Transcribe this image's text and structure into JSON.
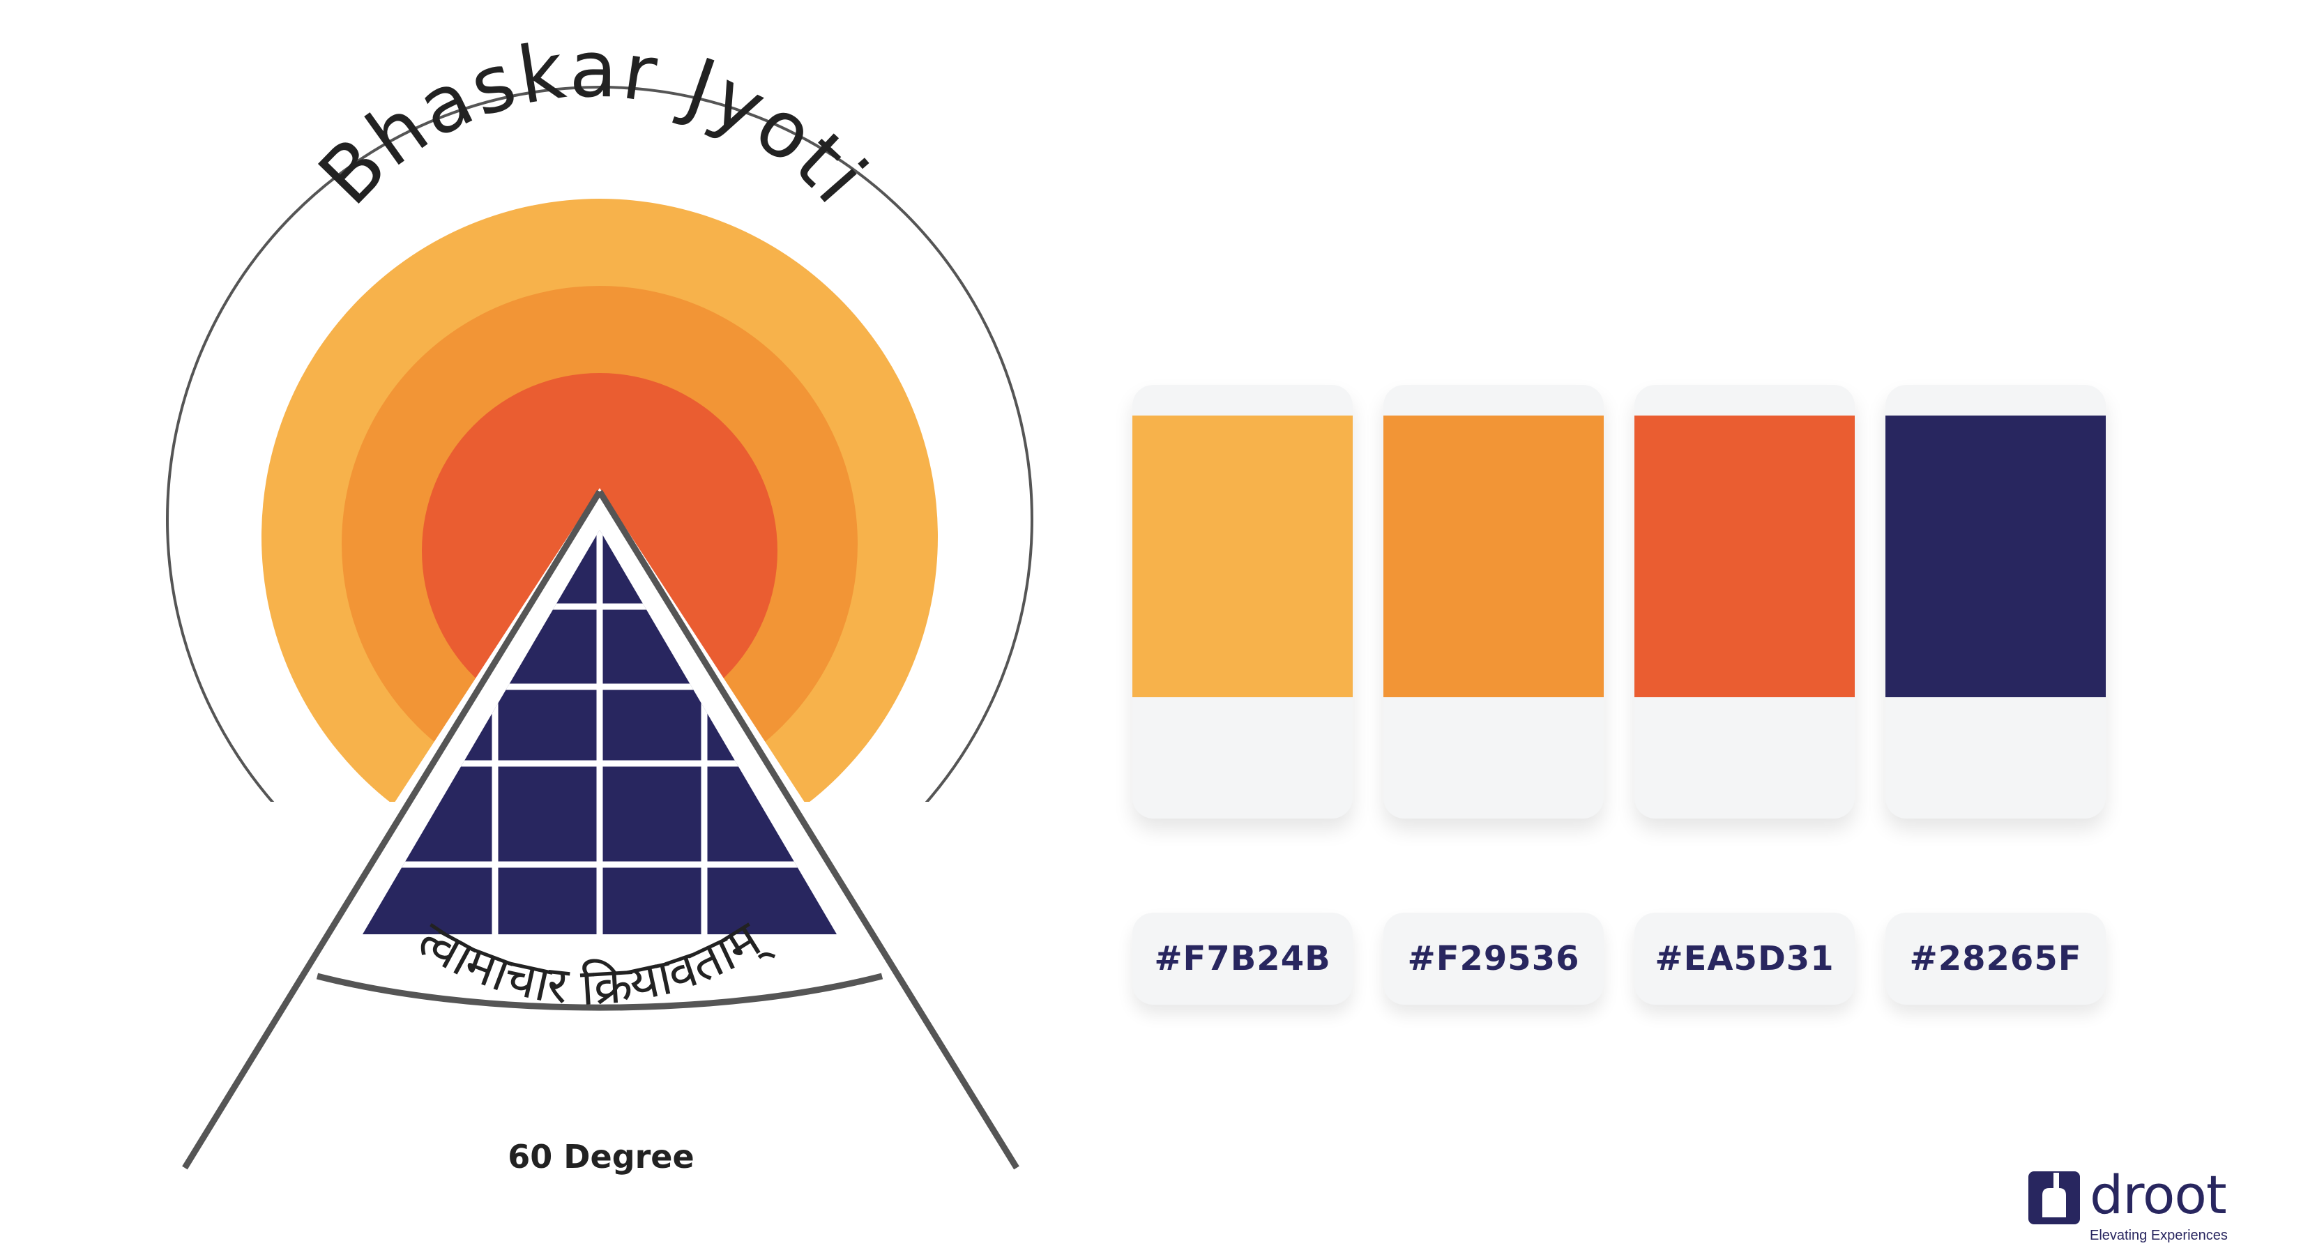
{
  "logo": {
    "title": "Bhaskar Jyoti",
    "motto": "त्वामाचार क्रियावताम्",
    "caption": "60 Degree",
    "colors": {
      "outer": "#F7B24B",
      "middle": "#F29536",
      "inner": "#EA5D31",
      "panel": "#28265F",
      "outline": "#555555"
    }
  },
  "palette": [
    {
      "hex": "#F7B24B",
      "label": "#F7B24B"
    },
    {
      "hex": "#F29536",
      "label": "#F29536"
    },
    {
      "hex": "#EA5D31",
      "label": "#EA5D31"
    },
    {
      "hex": "#28265F",
      "label": "#28265F"
    }
  ],
  "brand": {
    "name": "droot",
    "tagline": "Elevating Experiences",
    "color": "#28265F"
  }
}
